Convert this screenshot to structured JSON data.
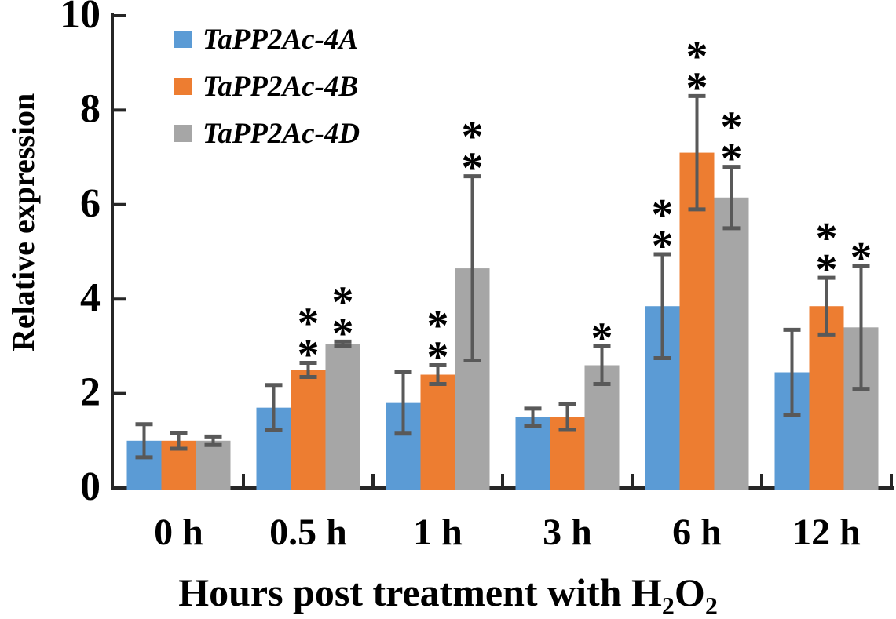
{
  "chart_data": {
    "type": "bar",
    "title": "",
    "ylabel": "Relative expression",
    "xlabel_prefix": "Hours post treatment with ",
    "xlabel_formula": [
      {
        "t": "H"
      },
      {
        "t": "2",
        "sub": true
      },
      {
        "t": "O"
      },
      {
        "t": "2",
        "sub": true
      }
    ],
    "categories": [
      "0 h",
      "0.5 h",
      "1 h",
      "3 h",
      "6 h",
      "12 h"
    ],
    "ylim": [
      0,
      10
    ],
    "yticks": [
      0,
      2,
      4,
      6,
      8,
      10
    ],
    "grid": false,
    "legend_position": "top-left-inside",
    "error_bars": true,
    "series": [
      {
        "name": "TaPP2Ac-4A",
        "color": "#5B9BD5",
        "values": [
          1.0,
          1.7,
          1.8,
          1.5,
          3.85,
          2.45
        ],
        "errors": [
          0.35,
          0.48,
          0.65,
          0.18,
          1.1,
          0.9
        ],
        "significance": [
          "",
          "",
          "",
          "",
          "**",
          ""
        ]
      },
      {
        "name": "TaPP2Ac-4B",
        "color": "#ED7D31",
        "values": [
          1.0,
          2.5,
          2.4,
          1.5,
          7.1,
          3.85
        ],
        "errors": [
          0.17,
          0.15,
          0.2,
          0.27,
          1.2,
          0.6
        ],
        "significance": [
          "",
          "**",
          "**",
          "",
          "**",
          "**"
        ]
      },
      {
        "name": "TaPP2Ac-4D",
        "color": "#A6A6A6",
        "values": [
          1.0,
          3.05,
          4.65,
          2.6,
          6.15,
          3.4
        ],
        "errors": [
          0.09,
          0.05,
          1.95,
          0.4,
          0.65,
          1.3
        ],
        "significance": [
          "",
          "**",
          "**",
          "*",
          "**",
          "*"
        ]
      }
    ],
    "colors": {
      "axis": "#262626",
      "error_bar": "#595959",
      "text": "#000000"
    }
  }
}
